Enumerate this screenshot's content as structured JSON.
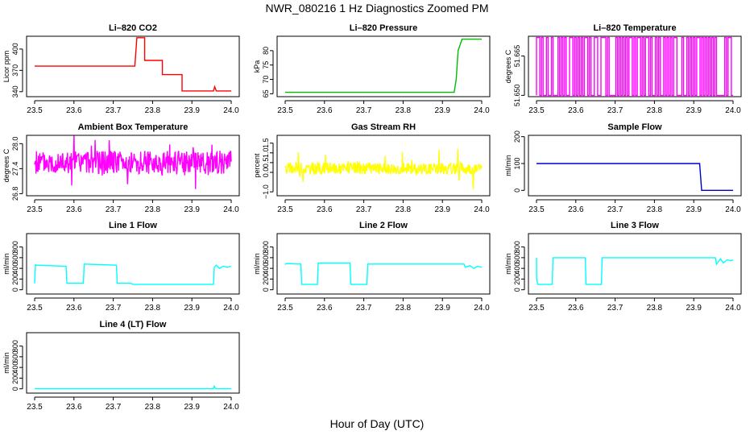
{
  "page": {
    "title": "NWR_080216  1 Hz Diagnostics Zoomed PM",
    "xlabel": "Hour of Day (UTC)"
  },
  "colors": {
    "red": "#ff0000",
    "green": "#00bb00",
    "magenta": "#ff00ff",
    "yellow": "#ffff00",
    "blue": "#0000cc",
    "cyan": "#00ffff"
  },
  "chart_data": [
    {
      "type": "line",
      "title": "Li–820 CO2",
      "ylabel": "Licor ppm",
      "color": "#ff0000",
      "xlim": [
        23.5,
        24.0
      ],
      "ylim": [
        333,
        418
      ],
      "xticks": [
        "23.5",
        "23.6",
        "23.7",
        "23.8",
        "23.9",
        "24.0"
      ],
      "yticks": [
        {
          "v": 340,
          "t": "340"
        },
        {
          "v": 370,
          "t": "370"
        },
        {
          "v": 400,
          "t": "400"
        }
      ],
      "series": [
        {
          "mode": "line",
          "x": [
            23.5,
            23.755,
            23.755,
            23.76,
            23.775,
            23.78,
            23.78,
            23.82,
            23.82,
            23.825,
            23.825,
            23.865,
            23.865,
            23.875,
            23.875,
            23.955,
            23.958,
            23.962,
            23.965,
            24.0
          ],
          "y": [
            376,
            376,
            376,
            416,
            416,
            416,
            384,
            384,
            384,
            384,
            364,
            364,
            364,
            364,
            341,
            341,
            347,
            341,
            341,
            341
          ]
        }
      ]
    },
    {
      "type": "line",
      "title": "Li–820 Pressure",
      "ylabel": "kPa",
      "color": "#00bb00",
      "xlim": [
        23.5,
        24.0
      ],
      "ylim": [
        64,
        85
      ],
      "xticks": [
        "23.5",
        "23.6",
        "23.7",
        "23.8",
        "23.9",
        "24.0"
      ],
      "yticks": [
        {
          "v": 65,
          "t": "65"
        },
        {
          "v": 70,
          "t": "70"
        },
        {
          "v": 75,
          "t": "75"
        },
        {
          "v": 80,
          "t": "80"
        }
      ],
      "series": [
        {
          "mode": "line",
          "x": [
            23.5,
            23.92,
            23.93,
            23.935,
            23.94,
            23.95,
            23.96,
            24.0
          ],
          "y": [
            65.5,
            65.5,
            65.5,
            70,
            80,
            84,
            84,
            84
          ]
        }
      ]
    },
    {
      "type": "line",
      "title": "Li–820 Temperature",
      "ylabel": "degrees C",
      "color": "#ff00ff",
      "xlim": [
        23.5,
        24.0
      ],
      "ylim": [
        51.6495,
        51.6725
      ],
      "xticks": [
        "23.5",
        "23.6",
        "23.7",
        "23.8",
        "23.9",
        "24.0"
      ],
      "yticks": [
        {
          "v": 51.65,
          "t": "51.650"
        },
        {
          "v": 51.665,
          "t": "51.665"
        }
      ],
      "series": [
        {
          "mode": "toggle",
          "low": 51.65,
          "high": 51.672,
          "n": 120,
          "seed": 11
        }
      ]
    },
    {
      "type": "line",
      "title": "Ambient Box Temperature",
      "ylabel": "degrees C",
      "color": "#ff00ff",
      "xlim": [
        23.5,
        24.0
      ],
      "ylim": [
        26.75,
        28.2
      ],
      "xticks": [
        "23.5",
        "23.6",
        "23.7",
        "23.8",
        "23.9",
        "24.0"
      ],
      "yticks": [
        {
          "v": 26.8,
          "t": "26.8"
        },
        {
          "v": 27.4,
          "t": "27.4"
        },
        {
          "v": 28.0,
          "t": "28.0"
        }
      ],
      "series": [
        {
          "mode": "noise",
          "mean": 27.55,
          "amp": 0.28,
          "spike": 0.55,
          "n": 420,
          "seed": 5
        }
      ]
    },
    {
      "type": "line",
      "title": "Gas Stream RH",
      "ylabel": "percent",
      "color": "#ffff00",
      "xlim": [
        23.5,
        24.0
      ],
      "ylim": [
        -1.2,
        1.9
      ],
      "xticks": [
        "23.5",
        "23.6",
        "23.7",
        "23.8",
        "23.9",
        "24.0"
      ],
      "yticks": [
        {
          "v": -1.0,
          "t": "−1.0"
        },
        {
          "v": 0.0,
          "t": "0.0"
        },
        {
          "v": 0.5,
          "t": "0.5"
        },
        {
          "v": 1.0,
          "t": "1.0"
        },
        {
          "v": 1.5,
          "t": "1.5"
        }
      ],
      "series": [
        {
          "mode": "noise",
          "mean": 0.2,
          "amp": 0.3,
          "spike": 0.9,
          "n": 420,
          "seed": 9
        }
      ]
    },
    {
      "type": "line",
      "title": "Sample Flow",
      "ylabel": "ml/min",
      "color": "#0000cc",
      "xlim": [
        23.5,
        24.0
      ],
      "ylim": [
        -20,
        205
      ],
      "xticks": [
        "23.5",
        "23.6",
        "23.7",
        "23.8",
        "23.9",
        "24.0"
      ],
      "yticks": [
        {
          "v": 0,
          "t": "0"
        },
        {
          "v": 100,
          "t": "100"
        },
        {
          "v": 200,
          "t": "200"
        }
      ],
      "series": [
        {
          "mode": "line",
          "x": [
            23.5,
            23.915,
            23.92,
            24.0
          ],
          "y": [
            100,
            100,
            0,
            0
          ]
        }
      ]
    },
    {
      "type": "line",
      "title": "Line 1 Flow",
      "ylabel": "ml/min",
      "color": "#00ffff",
      "xlim": [
        23.5,
        24.0
      ],
      "ylim": [
        -80,
        1050
      ],
      "xticks": [
        "23.5",
        "23.6",
        "23.7",
        "23.8",
        "23.9",
        "24.0"
      ],
      "yticks": [
        {
          "v": 0,
          "t": "0"
        },
        {
          "v": 200,
          "t": "200"
        },
        {
          "v": 400,
          "t": "400"
        },
        {
          "v": 600,
          "t": "600"
        },
        {
          "v": 800,
          "t": "800"
        }
      ],
      "series": [
        {
          "mode": "line",
          "x": [
            23.5,
            23.502,
            23.505,
            23.58,
            23.582,
            23.624,
            23.626,
            23.708,
            23.71,
            23.745,
            23.75,
            23.955,
            23.957,
            23.962,
            23.97,
            23.98,
            23.99,
            24.0
          ],
          "y": [
            120,
            470,
            460,
            440,
            120,
            120,
            480,
            460,
            120,
            120,
            100,
            100,
            420,
            460,
            400,
            440,
            420,
            440
          ]
        }
      ]
    },
    {
      "type": "line",
      "title": "Line 2 Flow",
      "ylabel": "ml/min",
      "color": "#00ffff",
      "xlim": [
        23.5,
        24.0
      ],
      "ylim": [
        -80,
        1050
      ],
      "xticks": [
        "23.5",
        "23.6",
        "23.7",
        "23.8",
        "23.9",
        "24.0"
      ],
      "yticks": [
        {
          "v": 0,
          "t": "0"
        },
        {
          "v": 200,
          "t": "200"
        },
        {
          "v": 400,
          "t": "400"
        },
        {
          "v": 600,
          "t": "600"
        },
        {
          "v": 800,
          "t": "800"
        }
      ],
      "series": [
        {
          "mode": "line",
          "x": [
            23.5,
            23.502,
            23.54,
            23.542,
            23.582,
            23.584,
            23.665,
            23.667,
            23.708,
            23.71,
            23.955,
            23.958,
            23.97,
            23.98,
            23.99,
            24.0
          ],
          "y": [
            470,
            490,
            480,
            100,
            100,
            500,
            500,
            100,
            100,
            480,
            480,
            420,
            450,
            400,
            440,
            420
          ]
        }
      ]
    },
    {
      "type": "line",
      "title": "Line 3 Flow",
      "ylabel": "ml/min",
      "color": "#00ffff",
      "xlim": [
        23.5,
        24.0
      ],
      "ylim": [
        -80,
        1050
      ],
      "xticks": [
        "23.5",
        "23.6",
        "23.7",
        "23.8",
        "23.9",
        "24.0"
      ],
      "yticks": [
        {
          "v": 0,
          "t": "0"
        },
        {
          "v": 200,
          "t": "200"
        },
        {
          "v": 400,
          "t": "400"
        },
        {
          "v": 600,
          "t": "600"
        },
        {
          "v": 800,
          "t": "800"
        }
      ],
      "series": [
        {
          "mode": "line",
          "x": [
            23.5,
            23.5005,
            23.503,
            23.54,
            23.542,
            23.624,
            23.626,
            23.665,
            23.667,
            23.955,
            23.958,
            23.968,
            23.975,
            23.985,
            23.995,
            24.0
          ],
          "y": [
            600,
            200,
            100,
            100,
            600,
            600,
            100,
            100,
            600,
            600,
            480,
            580,
            500,
            560,
            540,
            560
          ]
        }
      ]
    },
    {
      "type": "line",
      "title": "Line 4 (LT) Flow",
      "ylabel": "ml/min",
      "color": "#00ffff",
      "xlim": [
        23.5,
        24.0
      ],
      "ylim": [
        -80,
        1050
      ],
      "xticks": [
        "23.5",
        "23.6",
        "23.7",
        "23.8",
        "23.9",
        "24.0"
      ],
      "yticks": [
        {
          "v": 0,
          "t": "0"
        },
        {
          "v": 200,
          "t": "200"
        },
        {
          "v": 400,
          "t": "400"
        },
        {
          "v": 600,
          "t": "600"
        },
        {
          "v": 800,
          "t": "800"
        }
      ],
      "series": [
        {
          "mode": "line",
          "x": [
            23.5,
            23.955,
            23.957,
            23.96,
            23.963,
            24.0
          ],
          "y": [
            5,
            5,
            50,
            5,
            5,
            5
          ]
        }
      ]
    }
  ]
}
